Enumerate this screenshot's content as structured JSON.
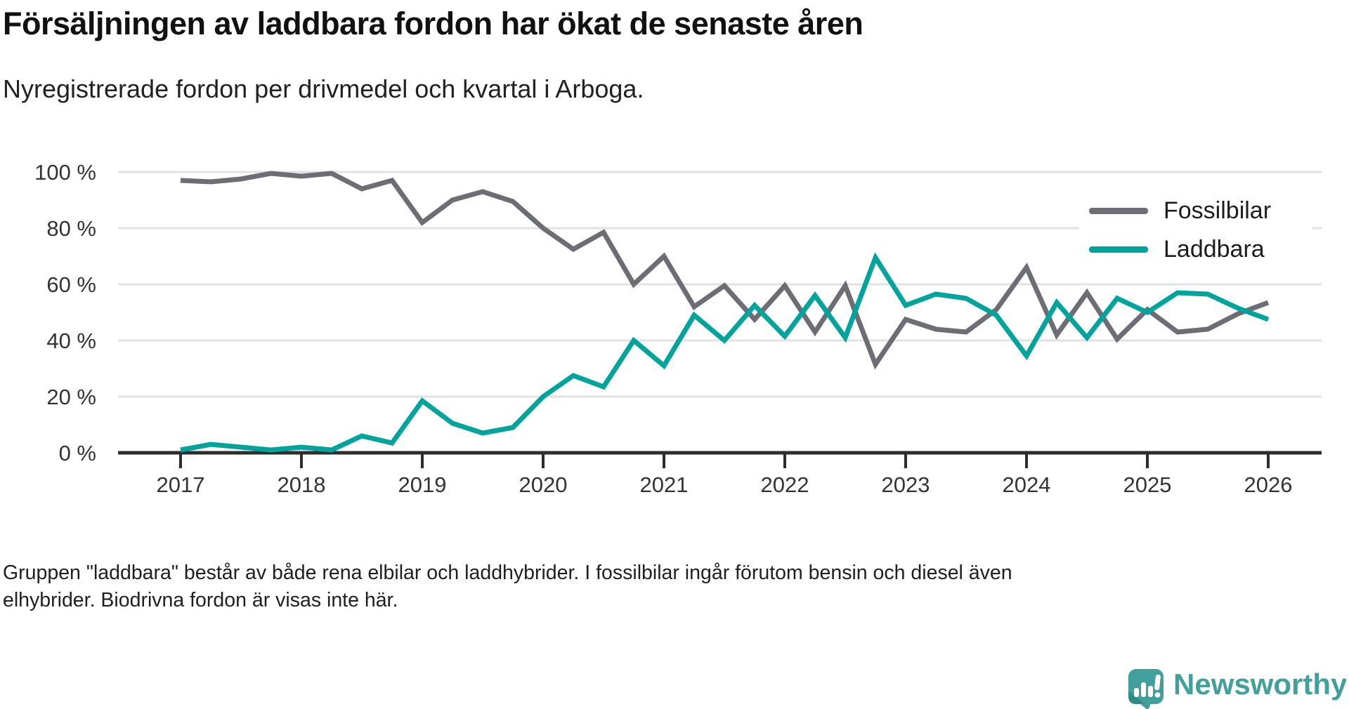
{
  "header": {
    "title": "Försäljningen av laddbara fordon har ökat de senaste åren",
    "subtitle": "Nyregistrerade fordon per drivmedel och kvartal i Arboga."
  },
  "chart_data": {
    "type": "line",
    "title": "Försäljningen av laddbara fordon har ökat de senaste åren",
    "subtitle": "Nyregistrerade fordon per drivmedel och kvartal i Arboga.",
    "x_unit": "kvartal",
    "categories": [
      "2017 Q1",
      "2017 Q2",
      "2017 Q3",
      "2017 Q4",
      "2018 Q1",
      "2018 Q2",
      "2018 Q3",
      "2018 Q4",
      "2019 Q1",
      "2019 Q2",
      "2019 Q3",
      "2019 Q4",
      "2020 Q1",
      "2020 Q2",
      "2020 Q3",
      "2020 Q4",
      "2021 Q1",
      "2021 Q2",
      "2021 Q3",
      "2021 Q4",
      "2022 Q1",
      "2022 Q2",
      "2022 Q3",
      "2022 Q4",
      "2023 Q1",
      "2023 Q2",
      "2023 Q3",
      "2023 Q4",
      "2024 Q1",
      "2024 Q2",
      "2024 Q3",
      "2024 Q4",
      "2025 Q1",
      "2025 Q2",
      "2025 Q3",
      "2025 Q4",
      "2026 Q1"
    ],
    "series": [
      {
        "name": "Fossilbilar",
        "color": "#6d6d76",
        "values": [
          97,
          96.5,
          97.5,
          99.5,
          98.5,
          99.5,
          94,
          97,
          82,
          90,
          93,
          89.5,
          80,
          72.5,
          78.5,
          60,
          70,
          52,
          59.5,
          47.5,
          59.5,
          43,
          59.5,
          31.5,
          47.5,
          44,
          43,
          51,
          66,
          42,
          57,
          40.5,
          51,
          43,
          44,
          49.5,
          53.5
        ]
      },
      {
        "name": "Laddbara",
        "color": "#00a49c",
        "values": [
          1,
          3,
          2,
          1,
          2,
          1,
          6,
          3.5,
          18.5,
          10.5,
          7,
          9,
          20,
          27.5,
          23.5,
          40,
          31,
          49,
          40,
          52.5,
          41.5,
          56,
          41,
          69.5,
          52.5,
          56.5,
          55,
          49,
          34.5,
          53.5,
          41,
          55,
          50,
          57,
          56.5,
          51.5,
          47.5
        ]
      }
    ],
    "ylim": [
      0,
      100
    ],
    "yticks": [
      0,
      20,
      40,
      60,
      80,
      100
    ],
    "ytick_suffix": " %",
    "xticks": [
      "2017",
      "2018",
      "2019",
      "2020",
      "2021",
      "2022",
      "2023",
      "2024",
      "2025",
      "2026"
    ],
    "grid": "horizontal",
    "legend_position": "top-right"
  },
  "footer": {
    "note": "Gruppen \"laddbara\" består av både rena elbilar och laddhybrider. I fossilbilar ingår förutom bensin och diesel även elhybrider. Biodrivna fordon är visas inte här."
  },
  "branding": {
    "logo_text": "Newsworthy",
    "logo_color": "#41a09b",
    "logo_dark_color": "#2e8c87"
  }
}
